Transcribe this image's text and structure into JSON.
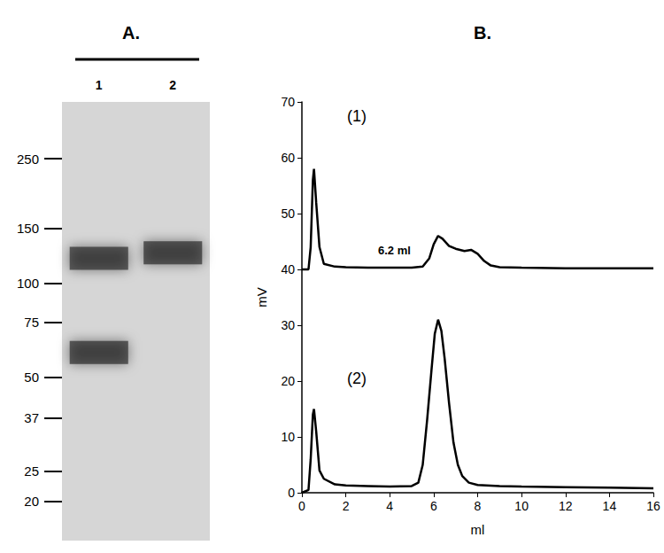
{
  "chart_data": [
    {
      "type": "gel",
      "title": "A.",
      "categories": [
        "1",
        "2"
      ],
      "log": "y",
      "ylim": [
        15,
        380
      ],
      "yticks": [
        250,
        150,
        100,
        75,
        50,
        37,
        25,
        20
      ],
      "bands": [
        {
          "lane": "2",
          "kda": 125
        },
        {
          "lane": "1",
          "kda": 120
        },
        {
          "lane": "1",
          "kda": 60
        }
      ]
    },
    {
      "type": "line",
      "title": "B.",
      "x_label": "ml",
      "y_label": "mV",
      "xlim": [
        0,
        16
      ],
      "xticks": [
        0,
        2,
        4,
        6,
        8,
        10,
        12,
        14,
        16
      ],
      "ylim": [
        0,
        70
      ],
      "yticks": [
        0,
        10,
        20,
        30,
        40,
        50,
        60,
        70
      ],
      "annotations": [
        "6.2 ml"
      ],
      "series": [
        {
          "name": "(1)",
          "color": "#000000",
          "x": [
            0,
            0.3,
            0.4,
            0.5,
            0.55,
            0.65,
            0.8,
            1.0,
            1.5,
            2,
            3,
            4,
            5,
            5.5,
            5.8,
            6.0,
            6.2,
            6.4,
            6.7,
            7.0,
            7.4,
            7.7,
            8.0,
            8.3,
            8.6,
            9,
            10,
            12,
            14,
            16
          ],
          "values": [
            40,
            40,
            44,
            56,
            58,
            52,
            44,
            41,
            40.5,
            40.4,
            40.3,
            40.3,
            40.3,
            40.5,
            42,
            44.5,
            46,
            45.5,
            44.2,
            43.7,
            43.3,
            43.5,
            42.8,
            41.5,
            40.7,
            40.4,
            40.3,
            40.2,
            40.2,
            40.2
          ]
        },
        {
          "name": "(2)",
          "color": "#000000",
          "x": [
            0,
            0.3,
            0.4,
            0.5,
            0.55,
            0.65,
            0.8,
            1.0,
            1.5,
            2,
            3,
            4,
            5,
            5.3,
            5.5,
            5.7,
            5.9,
            6.05,
            6.2,
            6.35,
            6.5,
            6.7,
            6.9,
            7.1,
            7.3,
            7.6,
            8,
            9,
            10,
            12,
            14,
            16
          ],
          "values": [
            0,
            0.5,
            6,
            14,
            15,
            11,
            4,
            2.5,
            1.5,
            1.3,
            1.2,
            1.1,
            1.2,
            1.8,
            5,
            13,
            22,
            28.5,
            31,
            29,
            24,
            16,
            9,
            5,
            3,
            1.8,
            1.4,
            1.2,
            1.1,
            1,
            0.9,
            0.8
          ]
        }
      ]
    }
  ]
}
